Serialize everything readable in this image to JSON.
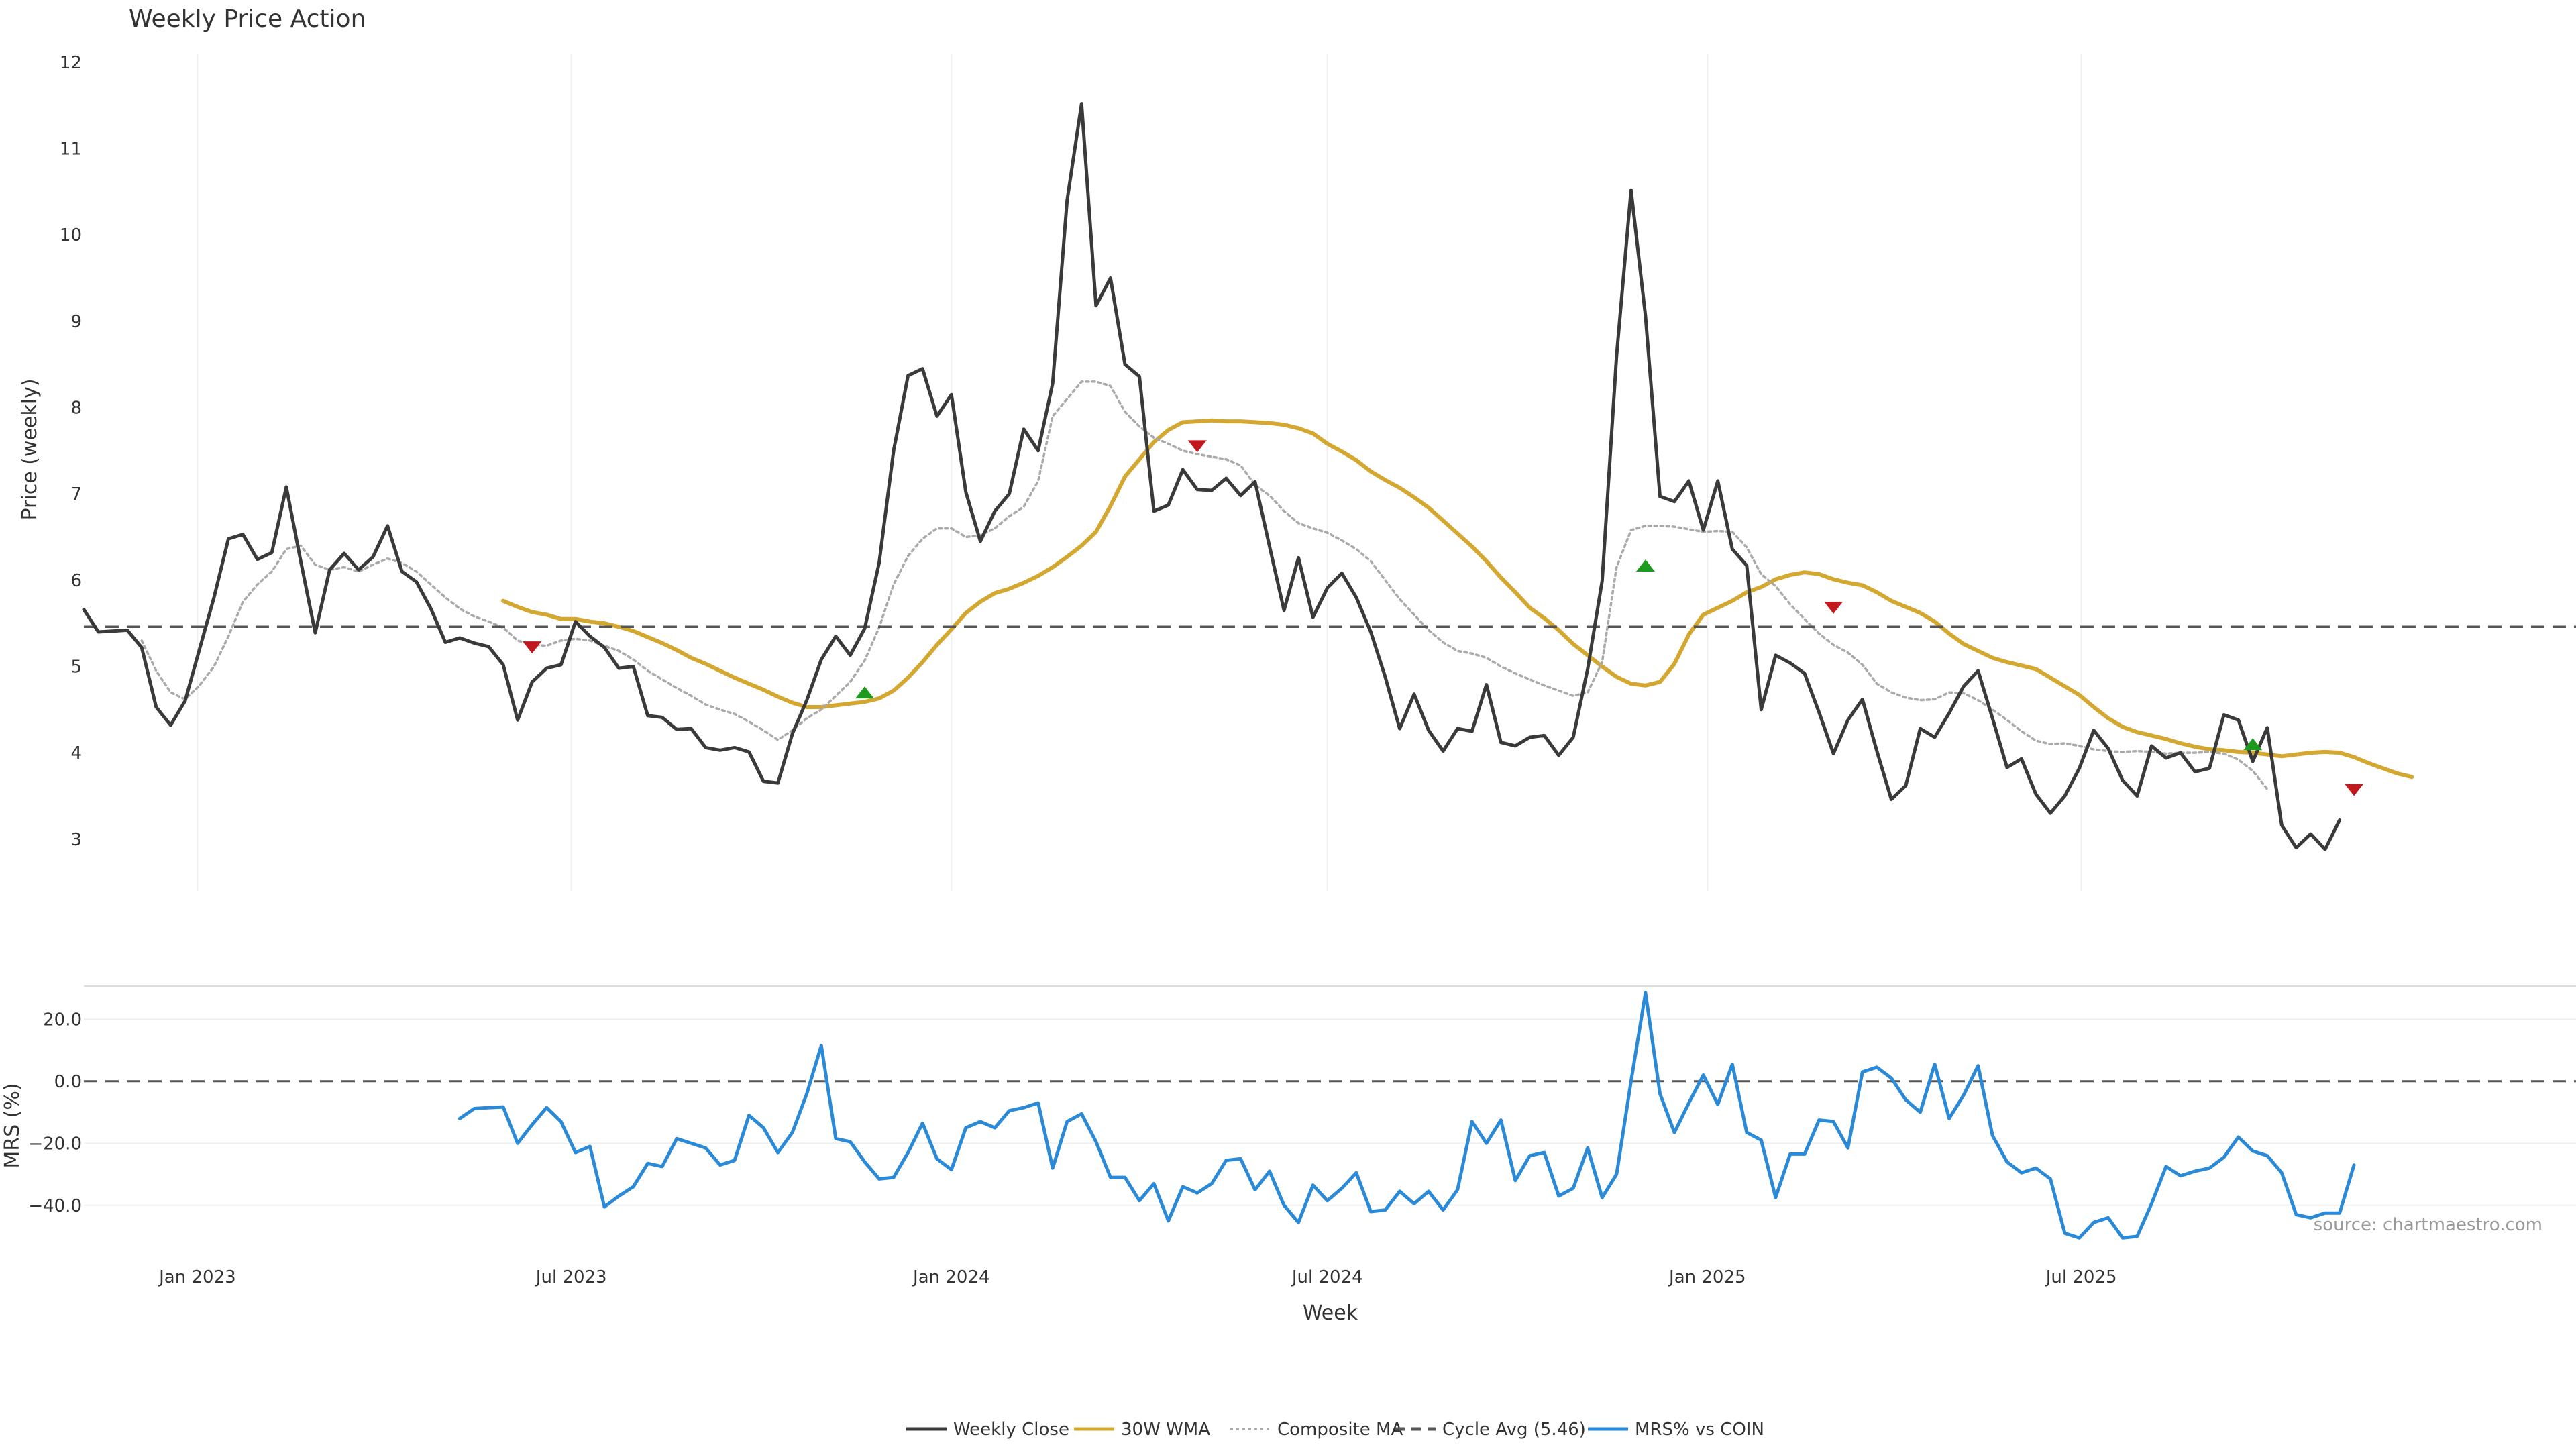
{
  "chart_data": [
    {
      "type": "line",
      "title": "Weekly Price Action",
      "ylabel": "Price (weekly)",
      "xlabel": "",
      "ylim": [
        2.4,
        12.1
      ],
      "yticks": [
        3,
        4,
        5,
        6,
        7,
        8,
        9,
        10,
        11,
        12
      ],
      "xlim": [
        "2022-11-07",
        "2025-12-29"
      ],
      "x_ticks": [
        {
          "date": "2023-01-01",
          "label": "Jan 2023"
        },
        {
          "date": "2023-07-01",
          "label": "Jul 2023"
        },
        {
          "date": "2024-01-01",
          "label": "Jan 2024"
        },
        {
          "date": "2024-07-01",
          "label": "Jul 2024"
        },
        {
          "date": "2025-01-01",
          "label": "Jan 2025"
        },
        {
          "date": "2025-07-01",
          "label": "Jul 2025"
        }
      ],
      "series_start": "2022-11-07",
      "series_step_days": 7,
      "series": [
        {
          "name": "Weekly Close",
          "color": "#3a3a3a",
          "style": "solid",
          "values": [
            5.66,
            5.4,
            5.41,
            5.42,
            5.22,
            4.53,
            4.32,
            4.6,
            5.2,
            5.8,
            6.48,
            6.53,
            6.24,
            6.32,
            7.08,
            6.22,
            5.39,
            6.12,
            6.31,
            6.12,
            6.27,
            6.63,
            6.1,
            5.98,
            5.67,
            5.28,
            5.33,
            5.27,
            5.23,
            5.02,
            4.38,
            4.82,
            4.98,
            5.02,
            5.52,
            5.35,
            5.22,
            4.98,
            5.0,
            4.43,
            4.41,
            4.27,
            4.28,
            4.06,
            4.03,
            4.06,
            4.01,
            3.67,
            3.65,
            4.22,
            4.61,
            5.08,
            5.35,
            5.13,
            5.44,
            6.2,
            7.5,
            8.37,
            8.45,
            7.9,
            8.15,
            7.02,
            6.45,
            6.8,
            7.0,
            7.75,
            7.5,
            8.28,
            10.4,
            11.52,
            9.18,
            9.5,
            8.5,
            8.36,
            6.8,
            6.87,
            7.28,
            7.05,
            7.04,
            7.18,
            6.98,
            7.14,
            6.39,
            5.65,
            6.26,
            5.57,
            5.91,
            6.08,
            5.8,
            5.4,
            4.88,
            4.28,
            4.68,
            4.26,
            4.02,
            4.28,
            4.25,
            4.79,
            4.12,
            4.08,
            4.18,
            4.2,
            3.97,
            4.18,
            4.97,
            5.99,
            8.6,
            10.52,
            9.06,
            6.97,
            6.91,
            7.15,
            6.58,
            7.15,
            6.36,
            6.17,
            4.5,
            5.13,
            5.04,
            4.92,
            4.47,
            3.99,
            4.38,
            4.62,
            4.02,
            3.46,
            3.62,
            4.28,
            4.18,
            4.46,
            4.77,
            4.95,
            4.4,
            3.83,
            3.93,
            3.52,
            3.3,
            3.5,
            3.82,
            4.26,
            4.05,
            3.68,
            3.5,
            4.08,
            3.94,
            4.0,
            3.78,
            3.82,
            4.44,
            4.38,
            3.9,
            4.29,
            3.16,
            2.9,
            3.06,
            2.88,
            3.22
          ]
        },
        {
          "name": "30W WMA",
          "color": "#d4a830",
          "style": "solid",
          "offset": 29,
          "values": [
            5.76,
            5.69,
            5.63,
            5.6,
            5.55,
            5.55,
            5.52,
            5.5,
            5.46,
            5.41,
            5.34,
            5.27,
            5.19,
            5.1,
            5.03,
            4.95,
            4.87,
            4.8,
            4.73,
            4.65,
            4.58,
            4.53,
            4.53,
            4.55,
            4.57,
            4.59,
            4.63,
            4.72,
            4.87,
            5.05,
            5.25,
            5.43,
            5.62,
            5.75,
            5.85,
            5.9,
            5.97,
            6.05,
            6.15,
            6.27,
            6.4,
            6.56,
            6.86,
            7.2,
            7.4,
            7.6,
            7.74,
            7.83,
            7.84,
            7.85,
            7.84,
            7.84,
            7.83,
            7.82,
            7.8,
            7.76,
            7.7,
            7.58,
            7.49,
            7.39,
            7.26,
            7.16,
            7.07,
            6.96,
            6.84,
            6.69,
            6.54,
            6.39,
            6.22,
            6.03,
            5.86,
            5.68,
            5.56,
            5.42,
            5.26,
            5.13,
            5.0,
            4.88,
            4.8,
            4.78,
            4.82,
            5.03,
            5.37,
            5.6,
            5.68,
            5.76,
            5.86,
            5.92,
            6.01,
            6.06,
            6.09,
            6.07,
            6.01,
            5.97,
            5.94,
            5.86,
            5.76,
            5.69,
            5.62,
            5.52,
            5.38,
            5.26,
            5.18,
            5.1,
            5.05,
            5.01,
            4.97,
            4.87,
            4.77,
            4.67,
            4.53,
            4.4,
            4.3,
            4.24,
            4.2,
            4.16,
            4.11,
            4.07,
            4.04,
            4.03,
            4.01,
            4.0,
            3.98,
            3.96,
            3.98,
            4.0,
            4.01,
            4.0,
            3.95,
            3.88,
            3.82,
            3.76,
            3.72
          ]
        },
        {
          "name": "Composite MA",
          "color": "#aaaaaa",
          "style": "dotted",
          "offset": 4,
          "values": [
            5.3,
            4.95,
            4.7,
            4.62,
            4.78,
            5.0,
            5.35,
            5.75,
            5.95,
            6.1,
            6.36,
            6.4,
            6.18,
            6.12,
            6.15,
            6.1,
            6.18,
            6.25,
            6.2,
            6.1,
            5.95,
            5.8,
            5.67,
            5.58,
            5.52,
            5.45,
            5.3,
            5.25,
            5.24,
            5.3,
            5.32,
            5.3,
            5.24,
            5.18,
            5.08,
            4.95,
            4.85,
            4.75,
            4.66,
            4.56,
            4.5,
            4.45,
            4.36,
            4.26,
            4.15,
            4.26,
            4.4,
            4.5,
            4.66,
            4.82,
            5.07,
            5.45,
            5.95,
            6.28,
            6.48,
            6.6,
            6.6,
            6.5,
            6.52,
            6.6,
            6.74,
            6.85,
            7.15,
            7.9,
            8.1,
            8.3,
            8.3,
            8.25,
            7.95,
            7.78,
            7.65,
            7.58,
            7.5,
            7.46,
            7.43,
            7.4,
            7.33,
            7.1,
            6.98,
            6.8,
            6.66,
            6.6,
            6.55,
            6.46,
            6.36,
            6.22,
            6.0,
            5.78,
            5.6,
            5.42,
            5.28,
            5.18,
            5.15,
            5.1,
            5.0,
            4.92,
            4.85,
            4.78,
            4.72,
            4.66,
            4.7,
            5.05,
            6.15,
            6.58,
            6.63,
            6.63,
            6.62,
            6.59,
            6.56,
            6.57,
            6.56,
            6.38,
            6.07,
            5.93,
            5.72,
            5.55,
            5.38,
            5.25,
            5.16,
            5.02,
            4.8,
            4.7,
            4.64,
            4.61,
            4.62,
            4.7,
            4.69,
            4.61,
            4.5,
            4.38,
            4.25,
            4.14,
            4.1,
            4.11,
            4.08,
            4.04,
            4.02,
            4.01,
            4.02,
            4.01,
            3.99,
            4.0,
            4.0,
            4.01,
            3.99,
            3.92,
            3.79,
            3.58
          ]
        },
        {
          "name": "Cycle Avg (5.46)",
          "color": "#555555",
          "style": "dashed",
          "constant": 5.46
        }
      ],
      "markers": [
        {
          "type": "sell",
          "week": 31,
          "y": 5.22,
          "color": "#c0181c"
        },
        {
          "type": "buy",
          "week": 54,
          "y": 4.7,
          "color": "#1e9a1e"
        },
        {
          "type": "sell",
          "week": 77,
          "y": 7.55,
          "color": "#c0181c"
        },
        {
          "type": "buy",
          "week": 108,
          "y": 6.17,
          "color": "#1e9a1e"
        },
        {
          "type": "sell",
          "week": 121,
          "y": 5.68,
          "color": "#c0181c"
        },
        {
          "type": "buy",
          "week": 150,
          "y": 4.1,
          "color": "#1e9a1e"
        },
        {
          "type": "sell",
          "week": 157,
          "y": 3.57,
          "color": "#c0181c"
        }
      ],
      "grid": true
    },
    {
      "type": "line",
      "ylabel": "MRS (%)",
      "xlabel": "Week",
      "ylim": [
        -50,
        30
      ],
      "yticks": [
        20.0,
        0.0,
        -20.0,
        -40.0
      ],
      "ytick_labels": [
        "20.0",
        "0.0",
        "−20.0",
        "−40.0"
      ],
      "zero_line": 0,
      "series": [
        {
          "name": "MRS% vs COIN",
          "color": "#2b8ad8",
          "style": "solid",
          "offset": 26,
          "values": [
            -12.0,
            -8.8,
            -8.5,
            -8.3,
            -20.0,
            -14.0,
            -8.5,
            -13.0,
            -23.0,
            -21.0,
            -40.5,
            -37.0,
            -34.0,
            -26.5,
            -27.5,
            -18.5,
            -20.0,
            -21.5,
            -27.0,
            -25.5,
            -11.0,
            -15.0,
            -23.0,
            -16.5,
            -4.0,
            11.5,
            -18.5,
            -19.5,
            -26.0,
            -31.5,
            -31.0,
            -23.0,
            -13.5,
            -25.0,
            -28.5,
            -15.0,
            -13.0,
            -15.0,
            -9.5,
            -8.5,
            -7.0,
            -28.0,
            -13.0,
            -10.5,
            -19.5,
            -31.0,
            -31.0,
            -38.5,
            -33.0,
            -45.0,
            -34.0,
            -36.0,
            -33.0,
            -25.5,
            -25.0,
            -35.0,
            -29.0,
            -40.0,
            -45.5,
            -33.5,
            -38.5,
            -34.5,
            -29.5,
            -42.0,
            -41.5,
            -35.5,
            -39.5,
            -35.5,
            -41.5,
            -35.0,
            -13.0,
            -20.0,
            -12.5,
            -32.0,
            -24.0,
            -23.0,
            -37.0,
            -34.5,
            -21.5,
            -37.5,
            -30.0,
            0.0,
            28.5,
            -4.0,
            -16.5,
            -7.0,
            2.0,
            -7.5,
            5.5,
            -16.5,
            -19.0,
            -37.5,
            -23.5,
            -23.5,
            -12.5,
            -13.0,
            -21.5,
            3.0,
            4.5,
            1.0,
            -6.0,
            -10.0,
            5.5,
            -12.0,
            -4.5,
            5.0,
            -17.5,
            -26.0,
            -29.5,
            -28.0,
            -31.5,
            -49.0,
            -50.5,
            -45.5,
            -44.0,
            -50.5,
            -50.0,
            -39.5,
            -27.5,
            -30.5,
            -29.0,
            -28.0,
            -24.5,
            -18.0,
            -22.5,
            -24.0,
            -29.5,
            -43.0,
            -44.0,
            -42.5,
            -42.5,
            -27.0
          ]
        }
      ],
      "grid": true
    }
  ],
  "x_tick_labels": [
    "Jan 2023",
    "Jul 2023",
    "Jan 2024",
    "Jul 2024",
    "Jan 2025",
    "Jul 2025"
  ],
  "legend": {
    "placement": "bottom-center",
    "items": [
      {
        "label": "Weekly Close",
        "color": "#3a3a3a",
        "style": "solid"
      },
      {
        "label": "30W WMA",
        "color": "#d4a830",
        "style": "solid"
      },
      {
        "label": "Composite MA",
        "color": "#aaaaaa",
        "style": "dotted"
      },
      {
        "label": "Cycle Avg (5.46)",
        "color": "#555555",
        "style": "dashed"
      },
      {
        "label": "MRS% vs COIN",
        "color": "#2b8ad8",
        "style": "solid"
      }
    ]
  },
  "source": "source: chartmaestro.com"
}
